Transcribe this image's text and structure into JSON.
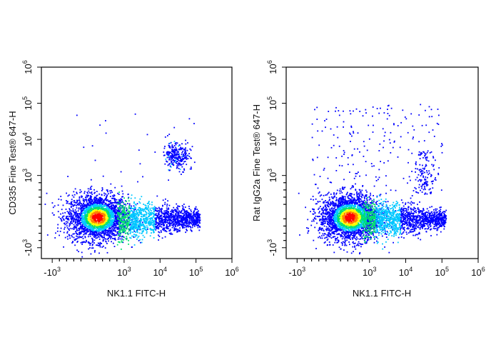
{
  "chart_data": [
    {
      "type": "scatter",
      "subtype": "flow-cytometry-density-plot",
      "xlabel": "NK1.1 FITC-H",
      "ylabel": "CD335 Fine Test® 647-H",
      "x_scale": "biexponential",
      "y_scale": "biexponential",
      "xlim": [
        -2000,
        1000000
      ],
      "ylim": [
        -2000,
        1000000
      ],
      "x_ticks": [
        {
          "base": "-10",
          "exp": "3",
          "value": -1000
        },
        {
          "base": "10",
          "exp": "3",
          "value": 1000
        },
        {
          "base": "10",
          "exp": "4",
          "value": 10000
        },
        {
          "base": "10",
          "exp": "5",
          "value": 100000
        },
        {
          "base": "10",
          "exp": "6",
          "value": 1000000
        }
      ],
      "y_ticks": [
        {
          "base": "-10",
          "exp": "3",
          "value": -1000
        },
        {
          "base": "10",
          "exp": "3",
          "value": 1000
        },
        {
          "base": "10",
          "exp": "4",
          "value": 10000
        },
        {
          "base": "10",
          "exp": "5",
          "value": 100000
        },
        {
          "base": "10",
          "exp": "6",
          "value": 1000000
        }
      ],
      "color_scale": [
        "#0000ff",
        "#00c8ff",
        "#00e070",
        "#ffff00",
        "#ff8000",
        "#ff0000"
      ],
      "populations": [
        {
          "label": "main",
          "x_center": 300,
          "y_center": 0,
          "density": "high"
        },
        {
          "label": "NK1.1+ tail",
          "x_range": [
            1000,
            100000
          ],
          "y_center": 0,
          "density": "medium"
        },
        {
          "label": "NK1.1+ CD335+",
          "x_center": 30000,
          "y_center": 3500,
          "density": "low"
        }
      ]
    },
    {
      "type": "scatter",
      "subtype": "flow-cytometry-density-plot",
      "xlabel": "NK1.1 FITC-H",
      "ylabel": "Rat IgG2a Fine Test® 647-H",
      "x_scale": "biexponential",
      "y_scale": "biexponential",
      "xlim": [
        -2000,
        1000000
      ],
      "ylim": [
        -2000,
        1000000
      ],
      "x_ticks": [
        {
          "base": "-10",
          "exp": "3",
          "value": -1000
        },
        {
          "base": "10",
          "exp": "3",
          "value": 1000
        },
        {
          "base": "10",
          "exp": "4",
          "value": 10000
        },
        {
          "base": "10",
          "exp": "5",
          "value": 100000
        },
        {
          "base": "10",
          "exp": "6",
          "value": 1000000
        }
      ],
      "y_ticks": [
        {
          "base": "-10",
          "exp": "3",
          "value": -1000
        },
        {
          "base": "10",
          "exp": "3",
          "value": 1000
        },
        {
          "base": "10",
          "exp": "4",
          "value": 10000
        },
        {
          "base": "10",
          "exp": "5",
          "value": 100000
        },
        {
          "base": "10",
          "exp": "6",
          "value": 1000000
        }
      ],
      "color_scale": [
        "#0000ff",
        "#00c8ff",
        "#00e070",
        "#ffff00",
        "#ff8000",
        "#ff0000"
      ],
      "populations": [
        {
          "label": "main",
          "x_center": 400,
          "y_center": 0,
          "density": "high"
        },
        {
          "label": "NK1.1+ tail",
          "x_range": [
            1000,
            100000
          ],
          "y_center": 0,
          "density": "medium"
        },
        {
          "label": "sparse events",
          "x_range": [
            -1000,
            100000
          ],
          "y_range": [
            1000,
            200000
          ],
          "density": "very low"
        }
      ]
    }
  ]
}
